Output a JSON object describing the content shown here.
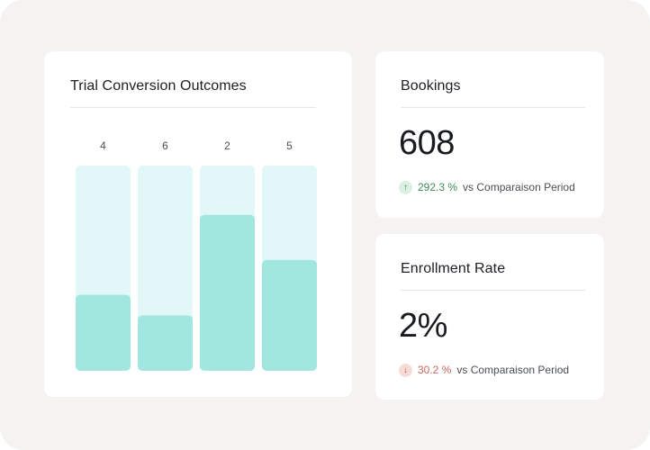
{
  "chart_card": {
    "title": "Trial Conversion Outcomes"
  },
  "chart_data": {
    "type": "bar",
    "categories": [
      "",
      "",
      "",
      ""
    ],
    "values": [
      4,
      6,
      2,
      5
    ],
    "value_fill_fractions": [
      0.37,
      0.27,
      0.76,
      0.54
    ],
    "colors": {
      "track": "#e1f7f8",
      "bar": "#a2e6e0"
    }
  },
  "kpis": [
    {
      "title": "Bookings",
      "value": "608",
      "delta": {
        "direction": "up",
        "icon": "arrow-up-icon",
        "glyph": "↑",
        "percent": "292.3 %",
        "label": "vs Comparaison Period"
      }
    },
    {
      "title": "Enrollment Rate",
      "value": "2%",
      "delta": {
        "direction": "down",
        "icon": "arrow-down-icon",
        "glyph": "↓",
        "percent": "30.2 %",
        "label": "vs Comparaison Period"
      }
    }
  ]
}
